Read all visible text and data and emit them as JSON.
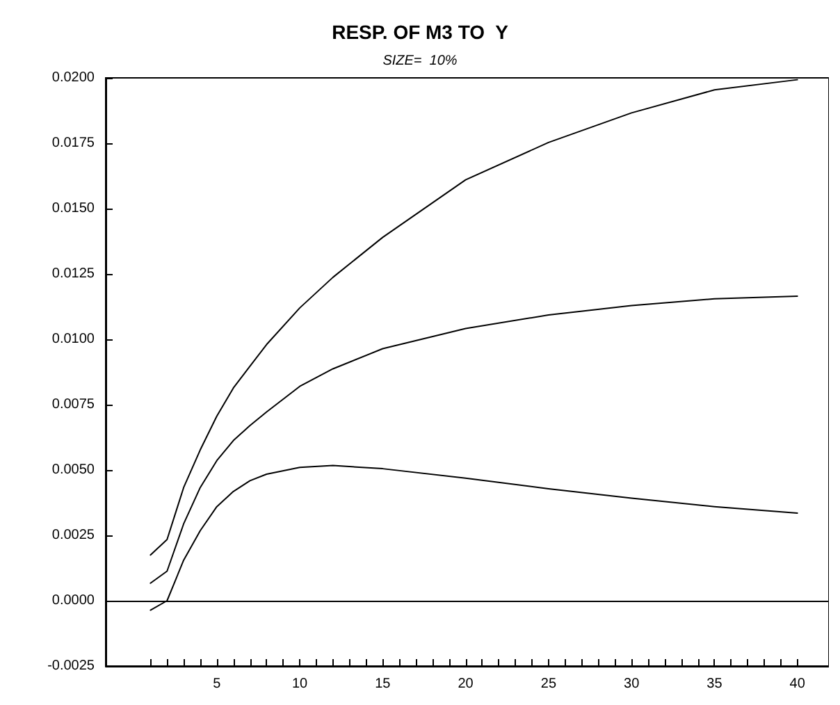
{
  "chart_data": {
    "type": "line",
    "title": "RESP. OF M3 TO  Y",
    "subtitle": "SIZE=  10%",
    "xlim": [
      -1.7,
      41.9
    ],
    "xticks": [
      {
        "value": 1,
        "label": null
      },
      {
        "value": 2,
        "label": null
      },
      {
        "value": 3,
        "label": null
      },
      {
        "value": 4,
        "label": null
      },
      5,
      {
        "value": 6,
        "label": null
      },
      {
        "value": 7,
        "label": null
      },
      {
        "value": 8,
        "label": null
      },
      {
        "value": 9,
        "label": null
      },
      10,
      {
        "value": 11,
        "label": null
      },
      {
        "value": 12,
        "label": null
      },
      {
        "value": 13,
        "label": null
      },
      {
        "value": 14,
        "label": null
      },
      15,
      {
        "value": 16,
        "label": null
      },
      {
        "value": 17,
        "label": null
      },
      {
        "value": 18,
        "label": null
      },
      {
        "value": 19,
        "label": null
      },
      20,
      {
        "value": 21,
        "label": null
      },
      {
        "value": 22,
        "label": null
      },
      {
        "value": 23,
        "label": null
      },
      {
        "value": 24,
        "label": null
      },
      25,
      {
        "value": 26,
        "label": null
      },
      {
        "value": 27,
        "label": null
      },
      {
        "value": 28,
        "label": null
      },
      {
        "value": 29,
        "label": null
      },
      30,
      {
        "value": 31,
        "label": null
      },
      {
        "value": 32,
        "label": null
      },
      {
        "value": 33,
        "label": null
      },
      {
        "value": 34,
        "label": null
      },
      35,
      {
        "value": 36,
        "label": null
      },
      {
        "value": 37,
        "label": null
      },
      {
        "value": 38,
        "label": null
      },
      {
        "value": 39,
        "label": null
      },
      40
    ],
    "ylim": [
      -0.0025,
      0.02
    ],
    "yticks": [
      {
        "value": -0.0025,
        "label": "-0.0025"
      },
      {
        "value": 0,
        "label": "0.0000"
      },
      {
        "value": 0.0025,
        "label": "0.0025"
      },
      {
        "value": 0.005,
        "label": "0.0050"
      },
      {
        "value": 0.0075,
        "label": "0.0075"
      },
      {
        "value": 0.01,
        "label": "0.0100"
      },
      {
        "value": 0.0125,
        "label": "0.0125"
      },
      {
        "value": 0.015,
        "label": "0.0150"
      },
      {
        "value": 0.0175,
        "label": "0.0175"
      },
      {
        "value": 0.02,
        "label": "0.0200"
      }
    ],
    "grid": false,
    "legend": false,
    "marker": "none",
    "line_style": "solid",
    "ref_lines": [
      {
        "axis": "y",
        "value": 0,
        "color": "#000000"
      }
    ],
    "x": [
      1,
      2,
      3,
      4,
      5,
      6,
      7,
      8,
      10,
      12,
      15,
      20,
      25,
      30,
      35,
      40
    ],
    "series": [
      {
        "color": "#000000",
        "values": [
          0.00175,
          0.00234,
          0.00433,
          0.00577,
          0.00706,
          0.00814,
          0.00897,
          0.0098,
          0.0112,
          0.01237,
          0.0139,
          0.0161,
          0.01753,
          0.01866,
          0.01954,
          0.01993
        ]
      },
      {
        "color": "#000000",
        "values": [
          0.00067,
          0.00113,
          0.00294,
          0.00433,
          0.00536,
          0.00613,
          0.0067,
          0.00722,
          0.0082,
          0.00887,
          0.00964,
          0.01041,
          0.01093,
          0.01129,
          0.01155,
          0.01165
        ]
      },
      {
        "color": "#000000",
        "values": [
          -0.00036,
          0,
          0.00155,
          0.00268,
          0.0036,
          0.00418,
          0.00459,
          0.00484,
          0.0051,
          0.00517,
          0.00505,
          0.00469,
          0.00428,
          0.00392,
          0.0036,
          0.00335
        ]
      }
    ]
  }
}
